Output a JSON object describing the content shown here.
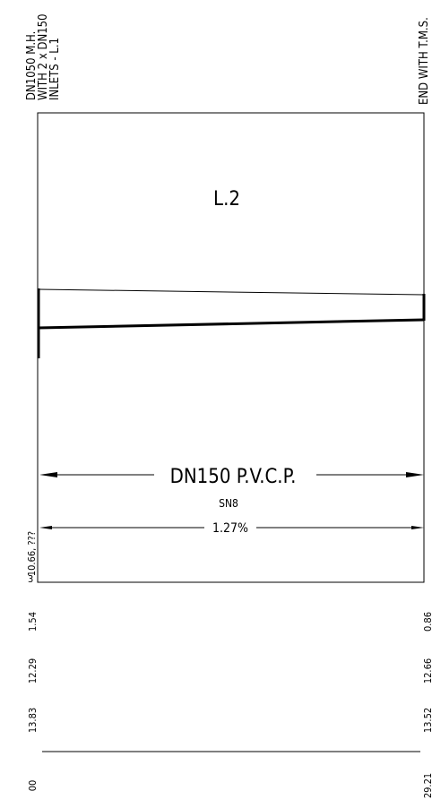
{
  "top_labels": {
    "manhole": [
      "DN1050 M.H.",
      "WITH 2 x DN150",
      "INLETS - L.1"
    ],
    "end": "END WITH T.M.S."
  },
  "section_label": "L.2",
  "pipe": {
    "size_label": "DN150 P.V.C.P.",
    "class_label": "SN8",
    "grade_label": "1.27%"
  },
  "left_side_labels": {
    "level": "10.66, ???",
    "three": "3"
  },
  "data_table": {
    "rows": [
      {
        "left": "1.54",
        "right": "0.86"
      },
      {
        "left": "12.29",
        "right": "12.66"
      },
      {
        "left": "13.83",
        "right": "13.52"
      },
      {
        "left": "00",
        "right": "29.21"
      }
    ]
  }
}
